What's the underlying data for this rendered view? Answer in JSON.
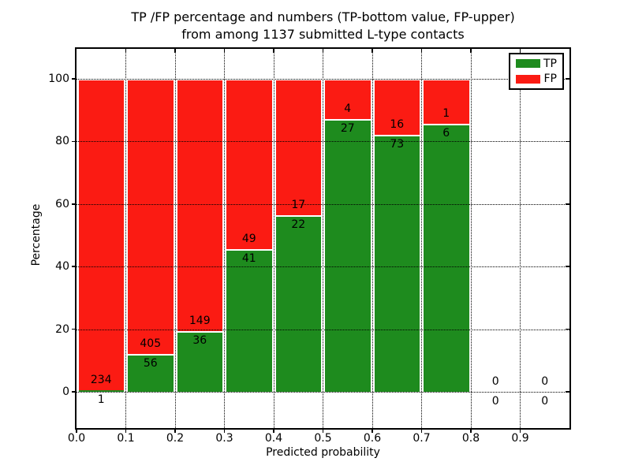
{
  "figure": {
    "title_line1": "TP /FP percentage and numbers (TP-bottom value, FP-upper)",
    "title_line2": "from among 1137 submitted L-type contacts"
  },
  "chart_data": {
    "type": "bar",
    "variant": "stacked-percentage-histogram",
    "title": "TP /FP percentage and numbers (TP-bottom value, FP-upper) from among 1137 submitted L-type contacts",
    "xlabel": "Predicted probability",
    "ylabel": "Percentage",
    "x_tick_labels": [
      "0.0",
      "0.1",
      "0.2",
      "0.3",
      "0.4",
      "0.5",
      "0.6",
      "0.7",
      "0.8",
      "0.9"
    ],
    "y_ticks": [
      0,
      20,
      40,
      60,
      80,
      100
    ],
    "y_tick_labels": [
      "0",
      "20",
      "40",
      "60",
      "80",
      "100"
    ],
    "xlim": [
      0.0,
      1.0
    ],
    "ylim_percent": [
      -12,
      110
    ],
    "grid": "dotted",
    "total_contacts": 1137,
    "legend": {
      "position": "upper right",
      "entries": [
        {
          "label": "TP",
          "color": "#1e8b1e"
        },
        {
          "label": "FP",
          "color": "#fb1b13"
        }
      ]
    },
    "colors": {
      "tp": "#1e8b1e",
      "fp": "#fb1b13",
      "grid": "#000000",
      "background": "#ffffff"
    },
    "bins": [
      {
        "range": [
          0.0,
          0.1
        ],
        "tp": 1,
        "fp": 234
      },
      {
        "range": [
          0.1,
          0.2
        ],
        "tp": 56,
        "fp": 405
      },
      {
        "range": [
          0.2,
          0.3
        ],
        "tp": 36,
        "fp": 149
      },
      {
        "range": [
          0.3,
          0.4
        ],
        "tp": 41,
        "fp": 49
      },
      {
        "range": [
          0.4,
          0.5
        ],
        "tp": 22,
        "fp": 17
      },
      {
        "range": [
          0.5,
          0.6
        ],
        "tp": 27,
        "fp": 4
      },
      {
        "range": [
          0.6,
          0.7
        ],
        "tp": 73,
        "fp": 16
      },
      {
        "range": [
          0.7,
          0.8
        ],
        "tp": 6,
        "fp": 1
      },
      {
        "range": [
          0.8,
          0.9
        ],
        "tp": 0,
        "fp": 0
      },
      {
        "range": [
          0.9,
          1.0
        ],
        "tp": 0,
        "fp": 0
      }
    ]
  }
}
